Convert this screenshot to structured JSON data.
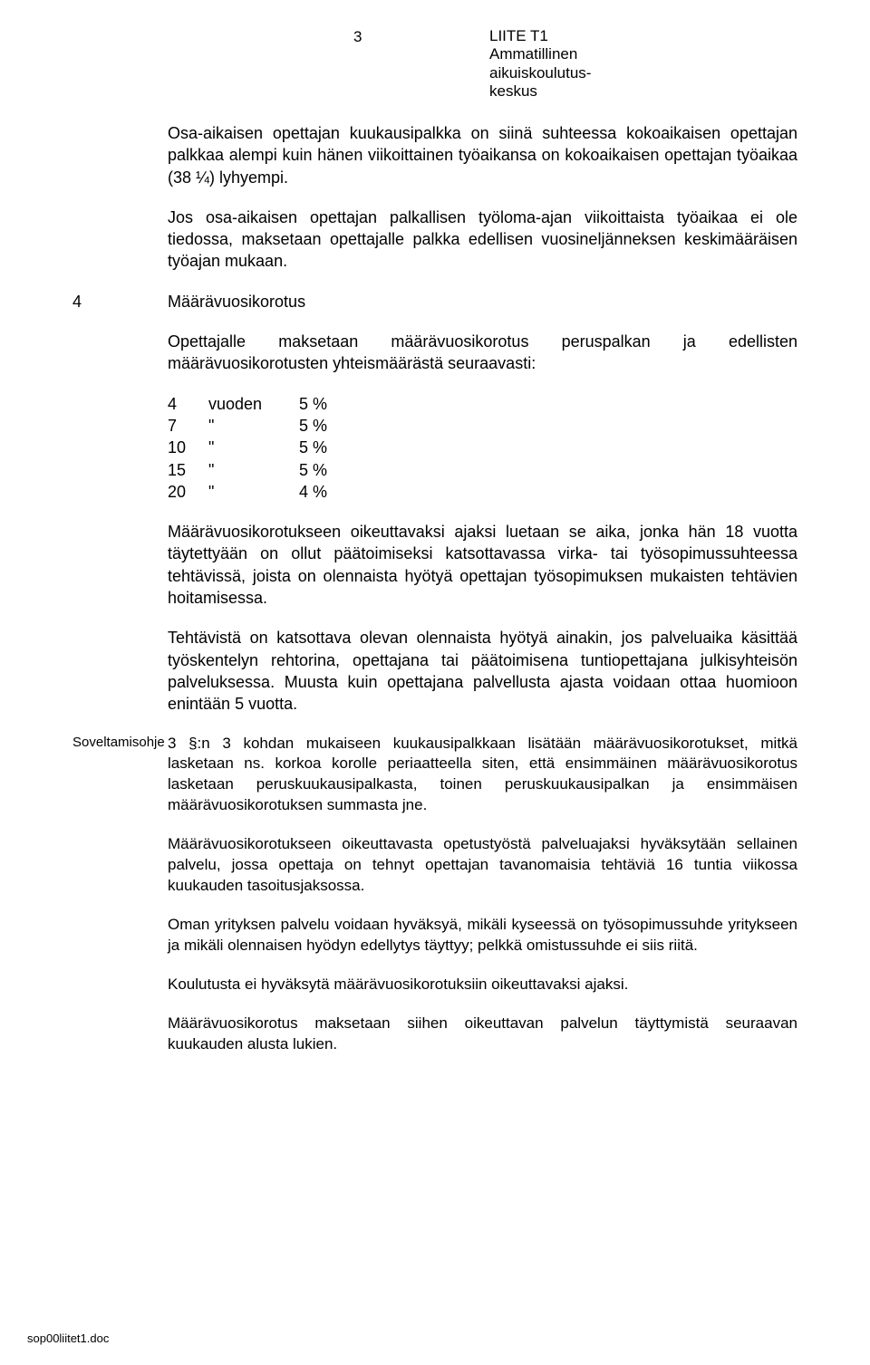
{
  "page_number": "3",
  "header": {
    "line1": "LIITE T1",
    "line2": "Ammatillinen",
    "line3": "aikuiskoulutus-",
    "line4": "keskus"
  },
  "para1": "Osa-aikaisen opettajan kuukausipalkka on siinä suhteessa kokoaikaisen opettajan palkkaa alempi kuin hänen viikoittainen työaikansa on kokoaikaisen opettajan työaikaa (38 ¼) lyhyempi.",
  "para2": "Jos osa-aikaisen opettajan palkallisen työloma-ajan viikoittaista työaikaa ei ole tiedossa, maksetaan opettajalle palkka edellisen vuosineljänneksen keskimääräisen työajan mukaan.",
  "section4": {
    "num": "4",
    "title": "Määrävuosikorotus"
  },
  "para3": "Opettajalle maksetaan määrävuosikorotus peruspalkan ja edellisten määrävuosikorotusten yhteismäärästä seuraavasti:",
  "table": {
    "rows": [
      {
        "c1": "4",
        "c2": "vuoden",
        "c3": "5 %"
      },
      {
        "c1": "7",
        "c2": "\"",
        "c3": "5 %"
      },
      {
        "c1": "10",
        "c2": "\"",
        "c3": "5 %"
      },
      {
        "c1": "15",
        "c2": "\"",
        "c3": "5 %"
      },
      {
        "c1": "20",
        "c2": "\"",
        "c3": "4 %"
      }
    ]
  },
  "para4": "Määrävuosikorotukseen oikeuttavaksi ajaksi luetaan se aika, jonka hän 18 vuotta täytettyään on ollut päätoimiseksi katsottavassa virka- tai työsopimussuhteessa tehtävissä, joista on olennaista hyötyä opettajan työsopimuksen mukaisten tehtävien hoitamisessa.",
  "para5": "Tehtävistä on katsottava olevan olennaista hyötyä ainakin, jos palveluaika käsittää työskentelyn rehtorina, opettajana tai päätoimisena tuntiopettajana julkisyhteisön palveluksessa. Muusta kuin opettajana palvellusta ajasta voidaan ottaa huomioon enintään 5 vuotta.",
  "annotation": {
    "label": "Soveltamisohje",
    "body": "3 §:n 3 kohdan mukaiseen kuukausipalkkaan lisätään määrävuosikorotukset, mitkä lasketaan ns. korkoa korolle periaatteella siten, että ensimmäinen määrävuosikorotus lasketaan peruskuukausipalkasta, toinen peruskuukausipalkan ja ensimmäisen määrävuosikorotuksen summasta jne."
  },
  "para6": "Määrävuosikorotukseen oikeuttavasta opetustyöstä palveluajaksi hyväksytään sellainen palvelu, jossa opettaja on tehnyt opettajan tavanomaisia tehtäviä 16 tuntia viikossa kuukauden tasoitusjaksossa.",
  "para7": "Oman yrityksen palvelu voidaan hyväksyä, mikäli kyseessä on työsopimussuhde yritykseen ja mikäli olennaisen hyödyn edellytys täyttyy; pelkkä omistussuhde ei siis riitä.",
  "para8": "Koulutusta ei hyväksytä määrävuosikorotuksiin oikeuttavaksi ajaksi.",
  "para9": "Määrävuosikorotus maksetaan siihen oikeuttavan palvelun täyttymistä seuraavan kuukauden alusta lukien.",
  "footer": "sop00liitet1.doc"
}
